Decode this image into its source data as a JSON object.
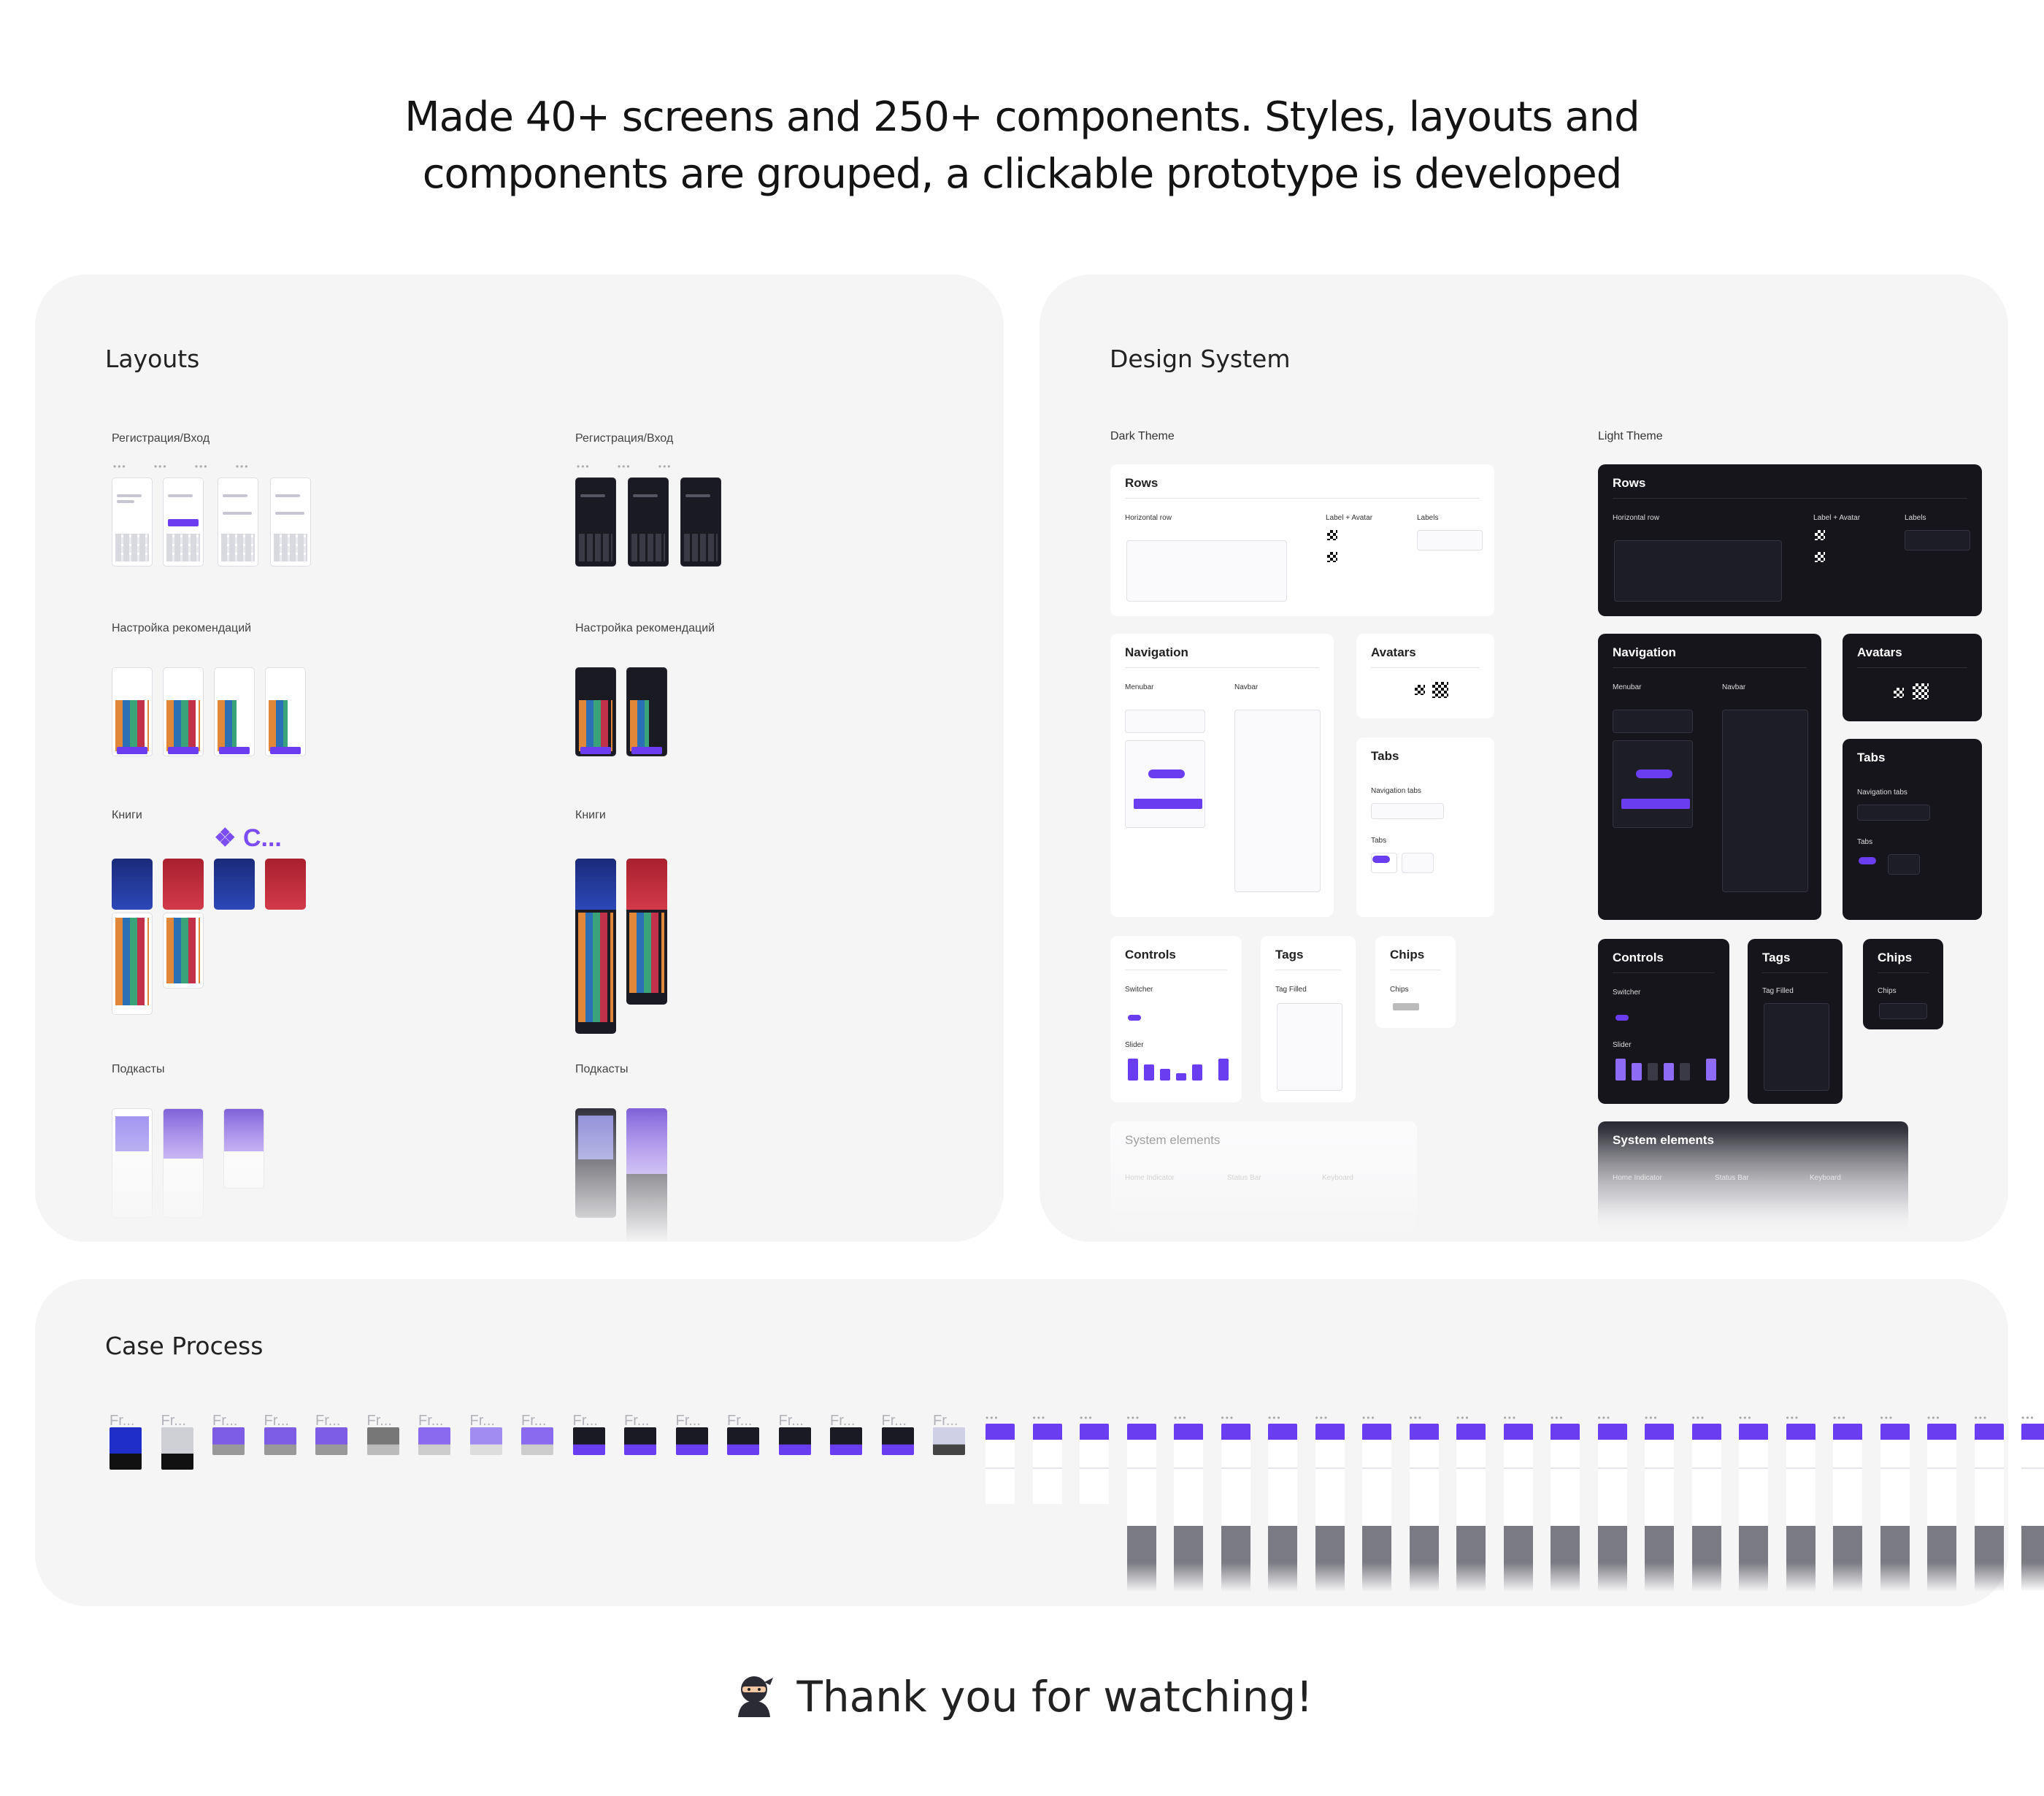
{
  "headline": {
    "line1": "Made 40+ screens and 250+ components. Styles, layouts and",
    "line2": "components are grouped, a clickable prototype is developed"
  },
  "layouts": {
    "title": "Layouts",
    "sections": [
      {
        "label_left": "Регистрация/Вход",
        "label_right": "Регистрация/Вход"
      },
      {
        "label_left": "Настройка рекомендаций",
        "label_right": "Настройка рекомендаций"
      },
      {
        "label_left": "Книги",
        "label_right": "Книги",
        "component_badge": "C..."
      },
      {
        "label_left": "Подкасты",
        "label_right": "Подкасты"
      }
    ]
  },
  "design_system": {
    "title": "Design System",
    "dark_theme_label": "Dark Theme",
    "light_theme_label": "Light Theme",
    "cards": {
      "rows": "Rows",
      "navigation": "Navigation",
      "avatars": "Avatars",
      "tabs": "Tabs",
      "controls": "Controls",
      "tags": "Tags",
      "chips": "Chips",
      "system_elements": "System elements"
    },
    "sub": {
      "horizontal_row": "Horizontal row",
      "label_avatar": "Label + Avatar",
      "labels": "Labels",
      "menubar": "Menubar",
      "navbar": "Navbar",
      "navigation_tabs": "Navigation tabs",
      "tabs": "Tabs",
      "switcher": "Switcher",
      "slider": "Slider",
      "tag_filled": "Tag Filled",
      "chips": "Chips",
      "home_indicator": "Home Indicator",
      "status_bar": "Status Bar",
      "keyboard": "Keyboard"
    }
  },
  "case_process": {
    "title": "Case Process",
    "frame_label": "Fr..."
  },
  "footer": {
    "thanks": "Thank you for watching!",
    "emoji_icon": "ninja-icon"
  },
  "colors": {
    "accent": "#6b3df0",
    "card_bg": "#f5f5f6",
    "dark_bg": "#15151b"
  }
}
